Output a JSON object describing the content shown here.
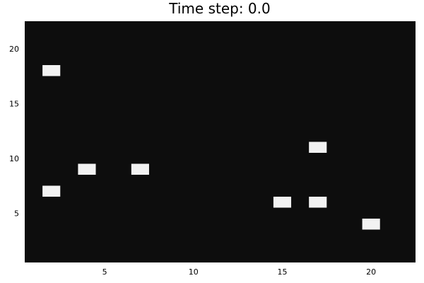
{
  "chart_data": {
    "type": "heatmap",
    "title": "Time step: 0.0",
    "xlabel": "",
    "ylabel": "",
    "xlim": [
      0.5,
      22.5
    ],
    "ylim": [
      0.5,
      22.5
    ],
    "xticks": [
      5,
      10,
      15,
      20
    ],
    "yticks": [
      5,
      10,
      15,
      20
    ],
    "grid": false,
    "legend": "none",
    "background_color": "#0d0d0d",
    "cell_color": "#f2f2f2",
    "active_cells": [
      {
        "x": 2,
        "y": 18
      },
      {
        "x": 2,
        "y": 7
      },
      {
        "x": 4,
        "y": 9
      },
      {
        "x": 7,
        "y": 9
      },
      {
        "x": 15,
        "y": 6
      },
      {
        "x": 17,
        "y": 11
      },
      {
        "x": 17,
        "y": 6
      },
      {
        "x": 20,
        "y": 4
      }
    ]
  }
}
